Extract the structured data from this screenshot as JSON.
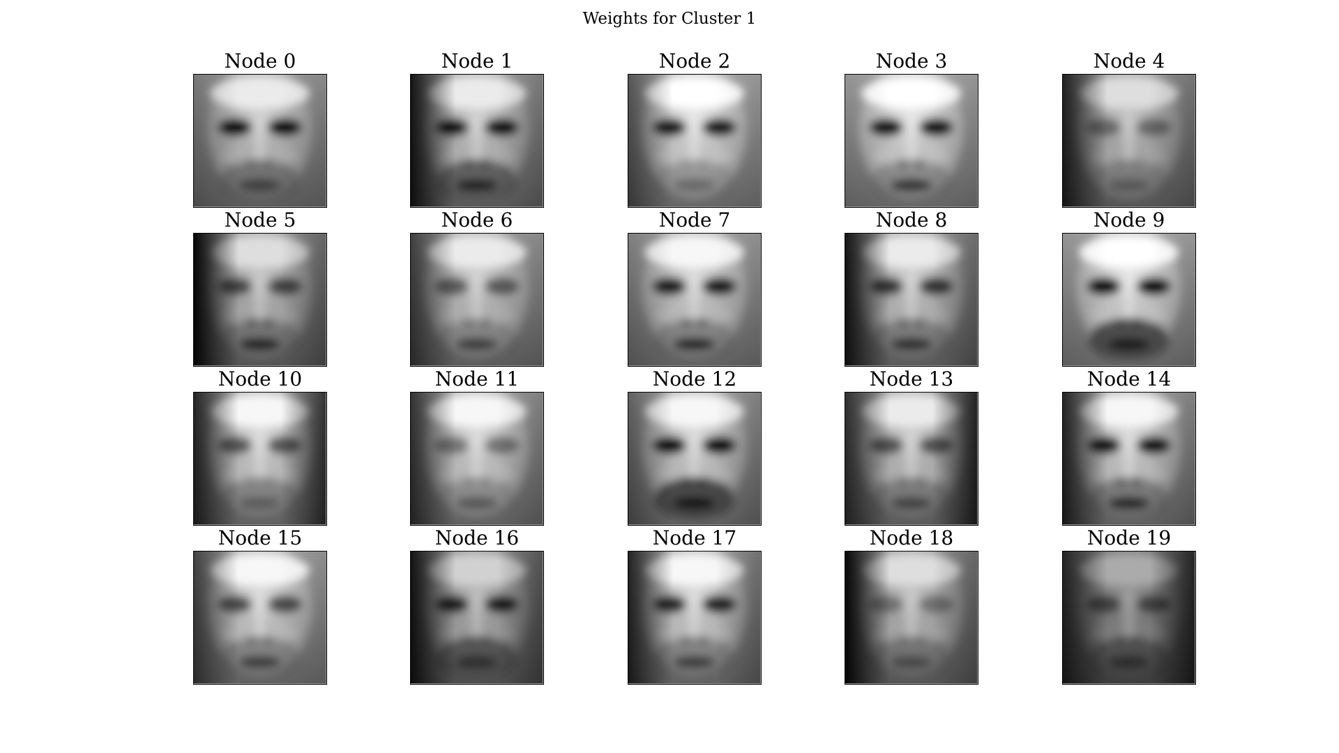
{
  "title": "Weights for Cluster 1",
  "chart_data": {
    "type": "heatmap",
    "title": "Weights for Cluster 1",
    "colormap": "gray",
    "grid": false,
    "axes_visible": false,
    "layout": {
      "rows": 4,
      "cols": 5
    },
    "panels": [
      {
        "title": "Node 0",
        "left_shadow": 0.2,
        "right_shadow": 0.1,
        "eye_darkness": 0.95,
        "mouth_darkness": 0.5,
        "beard": 0.4,
        "brightness": 0.8
      },
      {
        "title": "Node 1",
        "left_shadow": 0.9,
        "right_shadow": 0.2,
        "eye_darkness": 0.9,
        "mouth_darkness": 0.7,
        "beard": 0.6,
        "brightness": 0.8
      },
      {
        "title": "Node 2",
        "left_shadow": 0.5,
        "right_shadow": 0.1,
        "eye_darkness": 0.85,
        "mouth_darkness": 0.3,
        "beard": 0.2,
        "brightness": 0.9
      },
      {
        "title": "Node 3",
        "left_shadow": 0.1,
        "right_shadow": 0.1,
        "eye_darkness": 0.9,
        "mouth_darkness": 0.7,
        "beard": 0.3,
        "brightness": 0.9
      },
      {
        "title": "Node 4",
        "left_shadow": 0.8,
        "right_shadow": 0.2,
        "eye_darkness": 0.4,
        "mouth_darkness": 0.3,
        "beard": 0.2,
        "brightness": 0.75
      },
      {
        "title": "Node 5",
        "left_shadow": 1.0,
        "right_shadow": 0.3,
        "eye_darkness": 0.6,
        "mouth_darkness": 0.8,
        "beard": 0.3,
        "brightness": 0.75
      },
      {
        "title": "Node 6",
        "left_shadow": 0.6,
        "right_shadow": 0.1,
        "eye_darkness": 0.5,
        "mouth_darkness": 0.6,
        "beard": 0.2,
        "brightness": 0.8
      },
      {
        "title": "Node 7",
        "left_shadow": 0.2,
        "right_shadow": 0.1,
        "eye_darkness": 0.85,
        "mouth_darkness": 0.8,
        "beard": 0.3,
        "brightness": 0.85
      },
      {
        "title": "Node 8",
        "left_shadow": 0.9,
        "right_shadow": 0.3,
        "eye_darkness": 0.7,
        "mouth_darkness": 0.7,
        "beard": 0.3,
        "brightness": 0.8
      },
      {
        "title": "Node 9",
        "left_shadow": 0.1,
        "right_shadow": 0.1,
        "eye_darkness": 0.95,
        "mouth_darkness": 0.7,
        "beard": 0.9,
        "brightness": 0.9
      },
      {
        "title": "Node 10",
        "left_shadow": 0.8,
        "right_shadow": 0.7,
        "eye_darkness": 0.55,
        "mouth_darkness": 0.3,
        "beard": 0.3,
        "brightness": 0.85
      },
      {
        "title": "Node 11",
        "left_shadow": 0.7,
        "right_shadow": 0.2,
        "eye_darkness": 0.4,
        "mouth_darkness": 0.4,
        "beard": 0.2,
        "brightness": 0.85
      },
      {
        "title": "Node 12",
        "left_shadow": 0.4,
        "right_shadow": 0.2,
        "eye_darkness": 0.95,
        "mouth_darkness": 0.8,
        "beard": 0.9,
        "brightness": 0.85
      },
      {
        "title": "Node 13",
        "left_shadow": 0.7,
        "right_shadow": 0.8,
        "eye_darkness": 0.55,
        "mouth_darkness": 0.5,
        "beard": 0.3,
        "brightness": 0.8
      },
      {
        "title": "Node 14",
        "left_shadow": 0.8,
        "right_shadow": 0.2,
        "eye_darkness": 0.9,
        "mouth_darkness": 0.8,
        "beard": 0.4,
        "brightness": 0.85
      },
      {
        "title": "Node 15",
        "left_shadow": 0.6,
        "right_shadow": 0.1,
        "eye_darkness": 0.6,
        "mouth_darkness": 0.6,
        "beard": 0.3,
        "brightness": 0.85
      },
      {
        "title": "Node 16",
        "left_shadow": 0.9,
        "right_shadow": 0.4,
        "eye_darkness": 0.8,
        "mouth_darkness": 0.5,
        "beard": 0.6,
        "brightness": 0.7
      },
      {
        "title": "Node 17",
        "left_shadow": 0.8,
        "right_shadow": 0.3,
        "eye_darkness": 0.8,
        "mouth_darkness": 0.6,
        "beard": 0.3,
        "brightness": 0.85
      },
      {
        "title": "Node 18",
        "left_shadow": 1.0,
        "right_shadow": 0.3,
        "eye_darkness": 0.35,
        "mouth_darkness": 0.4,
        "beard": 0.3,
        "brightness": 0.75
      },
      {
        "title": "Node 19",
        "left_shadow": 0.7,
        "right_shadow": 0.7,
        "eye_darkness": 0.5,
        "mouth_darkness": 0.5,
        "beard": 0.4,
        "brightness": 0.55
      }
    ]
  }
}
